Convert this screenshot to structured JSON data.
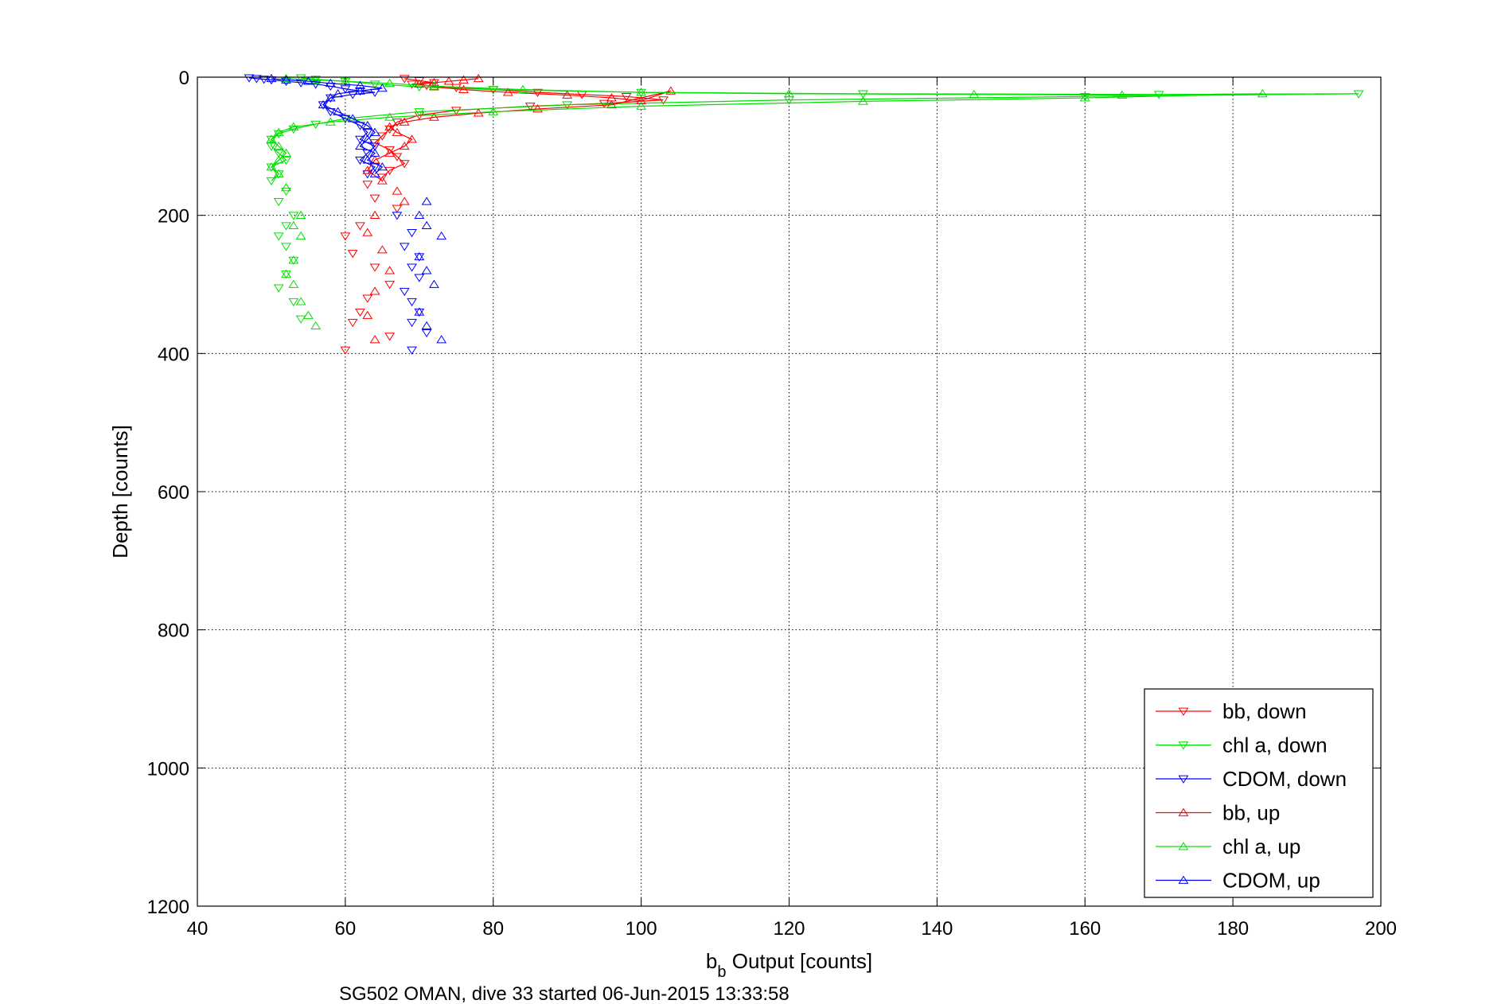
{
  "chart_data": {
    "type": "line",
    "xlabel_main": "b",
    "xlabel_sub": "b",
    "xlabel_rest": " Output [counts]",
    "ylabel": "Depth [counts]",
    "caption": "SG502 OMAN, dive 33 started 06-Jun-2015 13:33:58",
    "xlim": [
      40,
      200
    ],
    "ylim": [
      0,
      1200
    ],
    "y_reversed": true,
    "grid": true,
    "legend_position": "bottom-right",
    "xticks": [
      40,
      60,
      80,
      100,
      120,
      140,
      160,
      180,
      200
    ],
    "yticks": [
      0,
      200,
      400,
      600,
      800,
      1000,
      1200
    ],
    "xtick_labels": [
      "40",
      "60",
      "80",
      "100",
      "120",
      "140",
      "160",
      "180",
      "200"
    ],
    "ytick_labels": [
      "0",
      "200",
      "400",
      "600",
      "800",
      "1000",
      "1200"
    ],
    "series": [
      {
        "name": "bb, down",
        "color": "#ff0000",
        "marker": "triangle-down",
        "x": [
          68,
          70,
          72,
          69,
          71,
          75,
          80,
          86,
          92,
          98,
          103,
          95,
          85,
          75,
          70,
          67,
          66,
          65,
          64,
          66,
          67,
          68,
          66,
          65,
          63,
          64,
          67,
          62,
          60,
          61,
          64,
          66,
          63,
          62,
          61,
          66,
          60
        ],
        "y": [
          2,
          5,
          8,
          10,
          12,
          15,
          18,
          22,
          25,
          28,
          33,
          38,
          42,
          48,
          55,
          65,
          75,
          85,
          95,
          105,
          115,
          125,
          135,
          145,
          155,
          175,
          190,
          215,
          230,
          255,
          275,
          300,
          320,
          340,
          355,
          375,
          395
        ]
      },
      {
        "name": "chl a, down",
        "color": "#00e000",
        "marker": "triangle-down",
        "x": [
          54,
          56,
          60,
          64,
          70,
          80,
          100,
          130,
          170,
          197,
          160,
          120,
          90,
          70,
          60,
          56,
          53,
          51,
          50,
          50,
          51,
          52,
          50,
          51,
          50,
          52,
          51,
          53,
          52,
          51,
          52,
          53,
          52,
          51,
          53,
          54
        ],
        "y": [
          1,
          3,
          6,
          10,
          14,
          18,
          22,
          24,
          25,
          24,
          28,
          33,
          40,
          50,
          60,
          68,
          75,
          82,
          90,
          100,
          110,
          120,
          130,
          140,
          150,
          165,
          180,
          200,
          215,
          230,
          245,
          265,
          285,
          305,
          325,
          350
        ]
      },
      {
        "name": "CDOM, down",
        "color": "#0000ff",
        "marker": "triangle-down",
        "x": [
          47,
          48,
          49,
          50,
          52,
          54,
          56,
          58,
          60,
          62,
          64,
          61,
          58,
          57,
          58,
          60,
          62,
          63,
          62,
          64,
          63,
          62,
          64,
          63,
          67,
          69,
          68,
          70,
          69,
          70,
          68,
          69,
          70,
          69,
          71,
          69
        ],
        "y": [
          1,
          2,
          3,
          4,
          6,
          8,
          10,
          13,
          17,
          20,
          22,
          25,
          30,
          40,
          50,
          60,
          70,
          80,
          90,
          100,
          110,
          120,
          130,
          140,
          200,
          225,
          245,
          260,
          275,
          290,
          310,
          325,
          340,
          355,
          370,
          395
        ]
      },
      {
        "name": "bb, up",
        "color": "#ff0000",
        "marker": "triangle-up",
        "x": [
          78,
          76,
          74,
          72,
          70,
          72,
          76,
          82,
          90,
          96,
          100,
          104,
          96,
          86,
          78,
          72,
          68,
          66,
          67,
          69,
          68,
          66,
          64,
          63,
          65,
          67,
          68,
          64,
          63,
          65,
          66,
          64,
          63,
          64
        ],
        "y": [
          2,
          4,
          6,
          8,
          10,
          14,
          18,
          22,
          26,
          30,
          34,
          20,
          40,
          46,
          52,
          58,
          65,
          72,
          80,
          90,
          100,
          110,
          120,
          135,
          150,
          165,
          180,
          200,
          225,
          250,
          280,
          310,
          345,
          380
        ]
      },
      {
        "name": "chl a, up",
        "color": "#00e000",
        "marker": "triangle-up",
        "x": [
          52,
          56,
          60,
          66,
          72,
          84,
          100,
          120,
          145,
          165,
          184,
          160,
          130,
          100,
          80,
          66,
          58,
          53,
          51,
          50,
          51,
          52,
          51,
          50,
          51,
          52,
          54,
          53,
          54,
          53,
          52,
          53,
          54,
          55,
          56
        ],
        "y": [
          2,
          4,
          6,
          9,
          13,
          18,
          22,
          24,
          25,
          26,
          24,
          30,
          35,
          42,
          50,
          58,
          65,
          72,
          80,
          90,
          100,
          110,
          120,
          130,
          140,
          160,
          200,
          215,
          230,
          265,
          285,
          300,
          325,
          345,
          360
        ]
      },
      {
        "name": "CDOM, up",
        "color": "#0000ff",
        "marker": "triangle-up",
        "x": [
          50,
          52,
          55,
          58,
          62,
          65,
          62,
          59,
          58,
          57,
          59,
          61,
          63,
          64,
          63,
          62,
          64,
          63,
          65,
          64,
          71,
          70,
          71,
          73,
          70,
          71,
          72,
          70,
          71,
          73
        ],
        "y": [
          2,
          4,
          6,
          9,
          12,
          16,
          20,
          24,
          30,
          40,
          50,
          60,
          70,
          80,
          90,
          100,
          110,
          120,
          130,
          140,
          180,
          200,
          215,
          230,
          260,
          280,
          300,
          340,
          360,
          380
        ]
      }
    ]
  }
}
